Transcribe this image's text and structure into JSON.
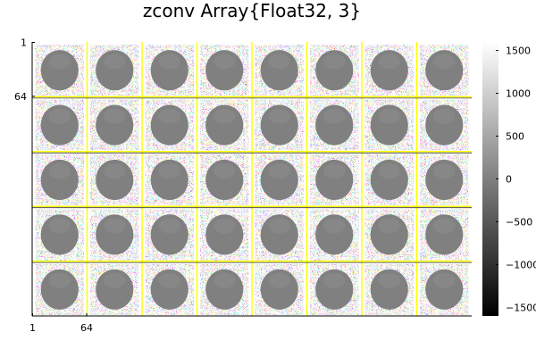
{
  "chart_data": {
    "type": "heatmap",
    "title": "zconv Array{Float32, 3}",
    "montage": {
      "rows": 5,
      "cols": 8,
      "tile_size": 64
    },
    "x_ticks": [
      "1",
      "64"
    ],
    "y_ticks": [
      "1",
      "64"
    ],
    "colorbar": {
      "colormap": "grayscale",
      "range": [
        -1600,
        1600
      ],
      "ticks": [
        1500,
        1000,
        500,
        0,
        -500,
        -1000,
        -1500
      ],
      "tick_labels": [
        "1500",
        "1000",
        "500",
        "0",
        "−500",
        "−1000",
        "−1500"
      ]
    },
    "grid_color": "#ffff00"
  }
}
